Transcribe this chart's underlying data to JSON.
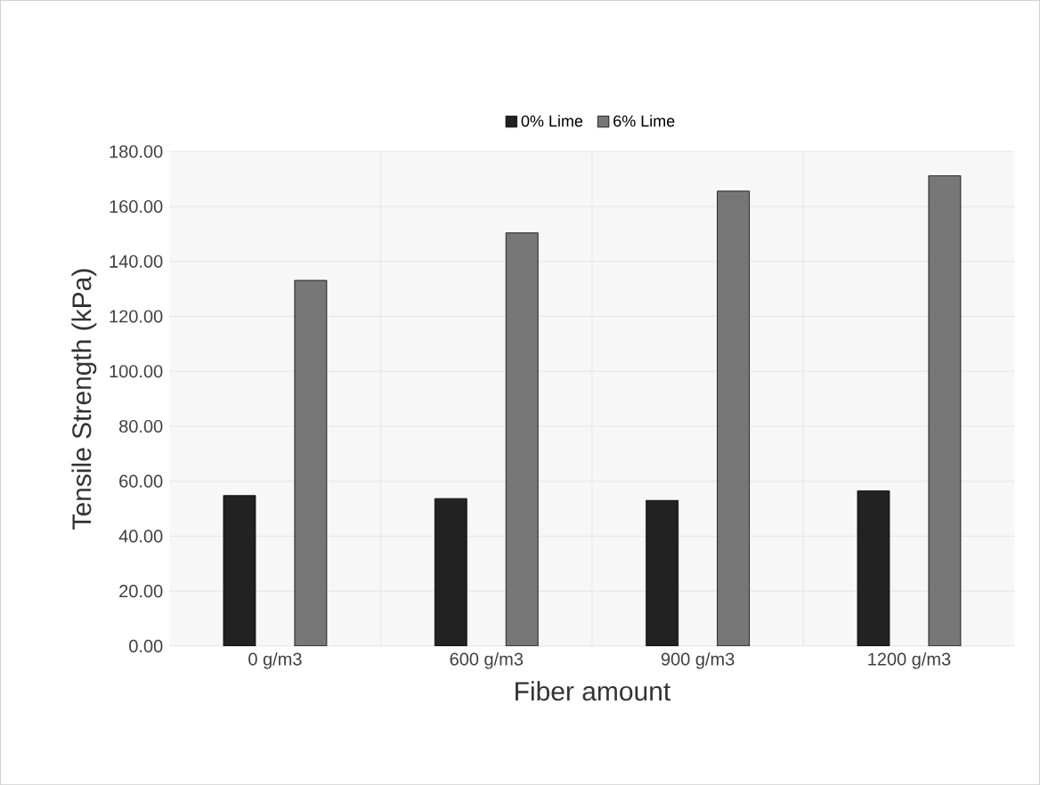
{
  "chart_data": {
    "type": "bar",
    "xlabel": "Fiber amount",
    "ylabel": "Tensile Strength (kPa)",
    "categories": [
      "0 g/m3",
      "600 g/m3",
      "900 g/m3",
      "1200 g/m3"
    ],
    "series": [
      {
        "name": "0% Lime",
        "color": "#222222",
        "values": [
          54.8,
          53.7,
          53.0,
          56.5
        ]
      },
      {
        "name": "6% Lime",
        "color": "#777777",
        "values": [
          133.1,
          150.4,
          165.6,
          171.2
        ]
      }
    ],
    "ylim": [
      0,
      180
    ],
    "yticks": [
      {
        "value": 0,
        "label": "0.00"
      },
      {
        "value": 20,
        "label": "20.00"
      },
      {
        "value": 40,
        "label": "40.00"
      },
      {
        "value": 60,
        "label": "60.00"
      },
      {
        "value": 80,
        "label": "80.00"
      },
      {
        "value": 100,
        "label": "100.00"
      },
      {
        "value": 120,
        "label": "120.00"
      },
      {
        "value": 140,
        "label": "140.00"
      },
      {
        "value": 160,
        "label": "160.00"
      },
      {
        "value": 180,
        "label": "180.00"
      }
    ],
    "grid": true,
    "legend": "top"
  }
}
